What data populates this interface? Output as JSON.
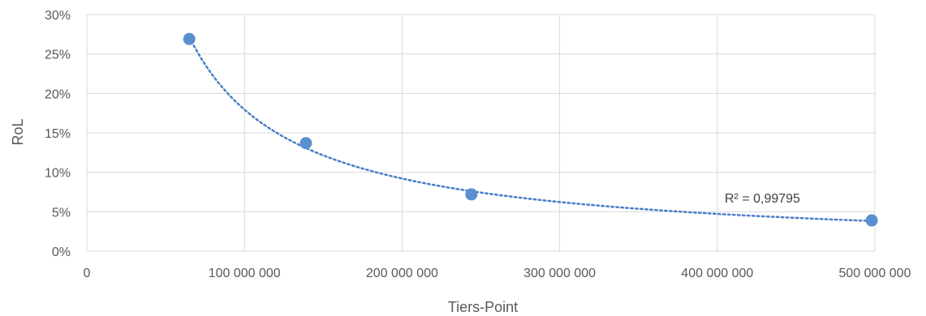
{
  "chart_data": {
    "type": "scatter",
    "title": "",
    "xlabel": "Tiers-Point",
    "ylabel": "RoL",
    "xlim": [
      0,
      500000000
    ],
    "ylim": [
      0,
      0.3
    ],
    "x_ticks": [
      0,
      100000000,
      200000000,
      300000000,
      400000000,
      500000000
    ],
    "x_tick_labels": [
      "0",
      "100 000 000",
      "200 000 000",
      "300 000 000",
      "400 000 000",
      "500 000 000"
    ],
    "y_ticks": [
      0,
      0.05,
      0.1,
      0.15,
      0.2,
      0.25,
      0.3
    ],
    "y_tick_labels": [
      "0%",
      "5%",
      "10%",
      "15%",
      "20%",
      "25%",
      "30%"
    ],
    "grid": true,
    "legend": "none",
    "series": [
      {
        "x": [
          65000000,
          139000000,
          244000000,
          498000000
        ],
        "y": [
          0.269,
          0.137,
          0.072,
          0.039
        ],
        "color": "#5b8fd0"
      }
    ],
    "trendline": {
      "type": "power",
      "style": "dotted",
      "color": "#4a7ec6",
      "r_squared_label": "R² = 0,99795"
    }
  }
}
